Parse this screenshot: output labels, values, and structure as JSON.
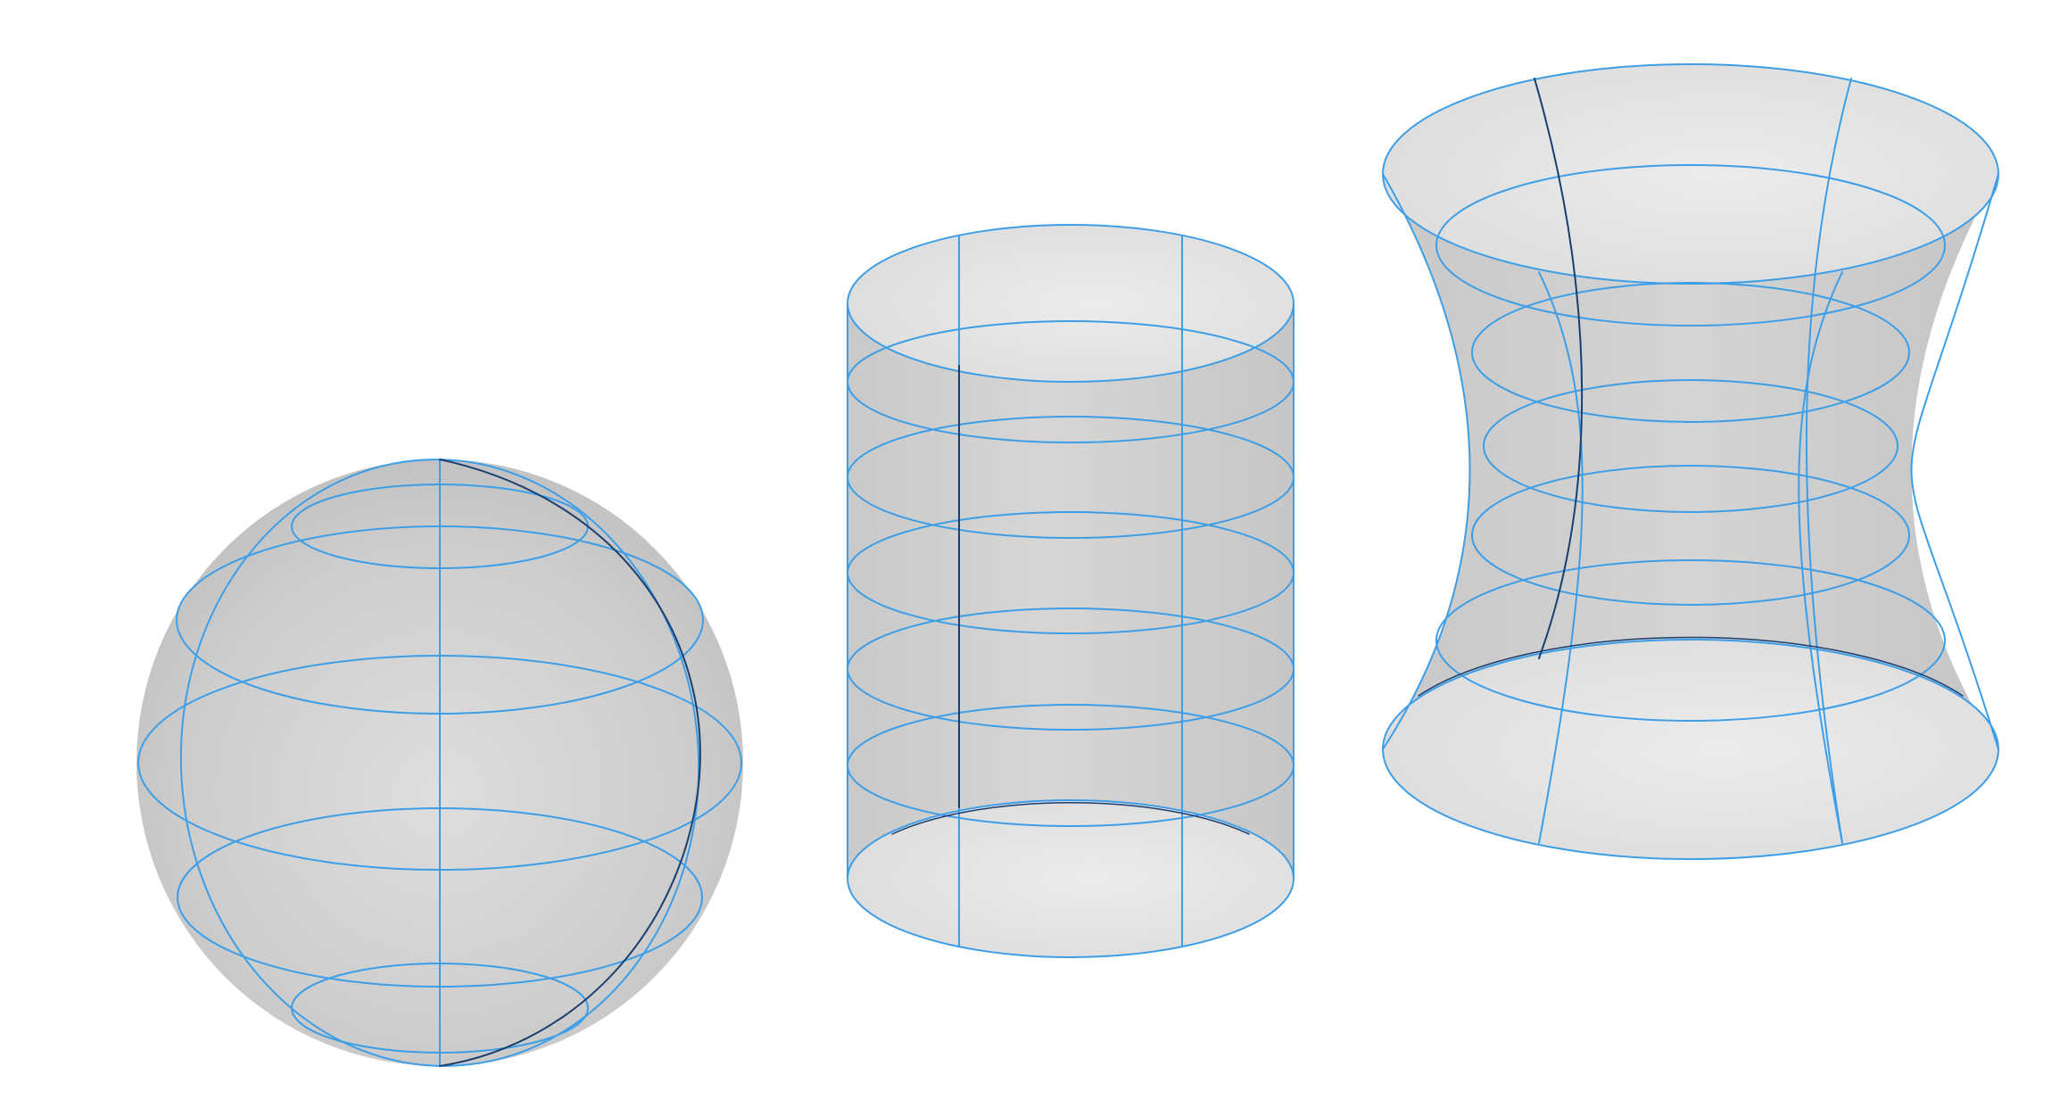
{
  "figure": {
    "colors": {
      "background": "#ffffff",
      "surface_light": "#e2e2e2",
      "surface_mid": "#cfcfcf",
      "surface_dark": "#c4c4c4",
      "wire_blue": "#3d9ee8",
      "wire_dark": "#1a3f6e"
    },
    "shapes": [
      {
        "id": "sphere",
        "name": "sphere",
        "latitude_rings": 5,
        "meridians": 3
      },
      {
        "id": "cylinder",
        "name": "cylinder",
        "latitude_rings": 7,
        "rulings": 2
      },
      {
        "id": "hyperboloid",
        "name": "hyperboloid",
        "latitude_rings": 7,
        "rulings": 4
      }
    ]
  }
}
